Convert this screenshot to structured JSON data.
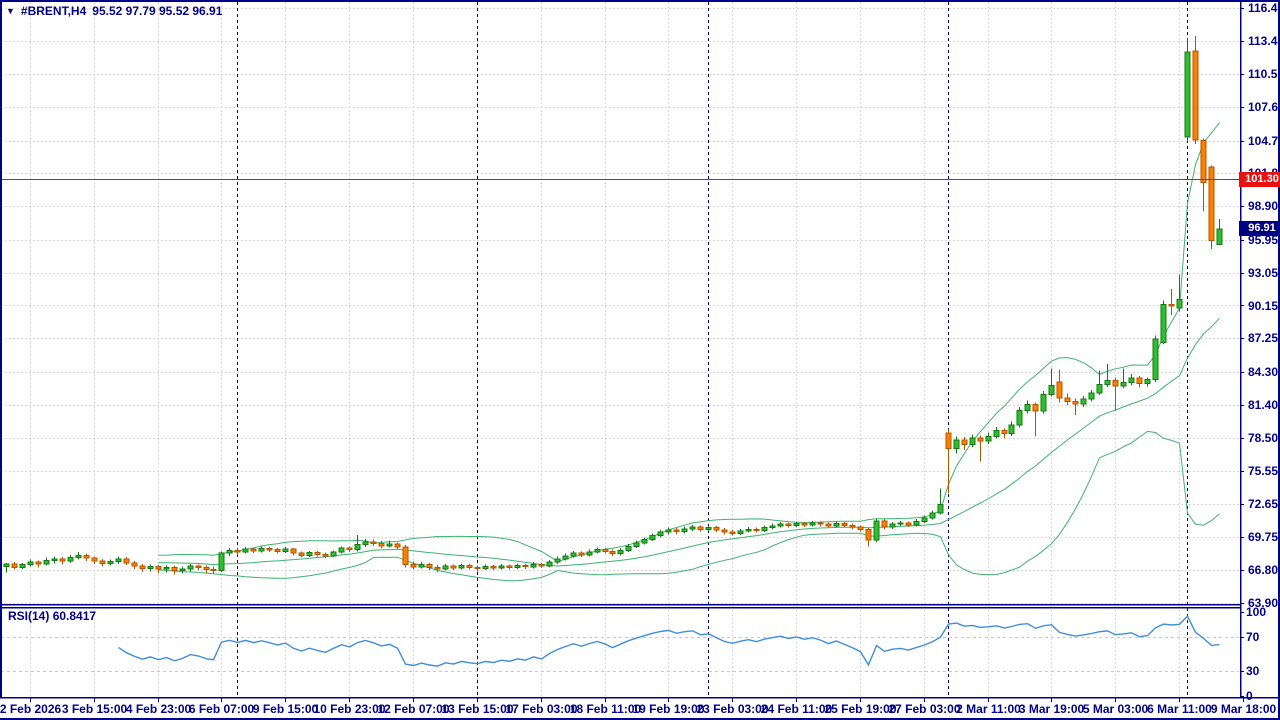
{
  "header": {
    "dropdown_icon": "▼",
    "symbol": "#BRENT,H4",
    "ohlc": "95.52 97.79 95.52 96.91"
  },
  "indicator_panel": {
    "label": "RSI(14)",
    "value": "60.8417"
  },
  "price_axis": {
    "hline_tag": "101.30",
    "last_price_tag": "96.91"
  },
  "colors": {
    "background": "#ffffff",
    "frame": "#00008B",
    "axis_text": "#00008B",
    "grid": "#d9d9d9",
    "separator": "#000080",
    "bull_fill": "#2fbe2f",
    "bull_edge": "#157815",
    "bear_fill": "#fc7f00",
    "bear_edge": "#b35400",
    "bollinger": "#3CB371",
    "rsi_line": "#3E8EDD",
    "hline": "#e81010",
    "hline_tag_bg": "#e81010",
    "last_tag_bg": "#000080"
  },
  "chart_data": {
    "type": "candlestick",
    "symbol": "#BRENT",
    "timeframe": "H4",
    "price_ticks": [
      116.4,
      113.45,
      110.55,
      107.65,
      104.7,
      101.8,
      98.9,
      95.95,
      93.05,
      90.15,
      87.25,
      84.3,
      81.4,
      78.5,
      75.55,
      72.65,
      69.75,
      66.8,
      63.9
    ],
    "rsi_ticks": [
      100,
      70,
      30,
      0
    ],
    "rsi_levels": [
      70,
      30
    ],
    "time_labels": [
      "2 Feb 2026",
      "3 Feb 15:00",
      "4 Feb 23:00",
      "6 Feb 07:00",
      "9 Feb 15:00",
      "10 Feb 23:00",
      "12 Feb 07:00",
      "13 Feb 15:00",
      "17 Feb 03:00",
      "18 Feb 11:00",
      "19 Feb 19:00",
      "23 Feb 03:00",
      "24 Feb 11:00",
      "25 Feb 19:00",
      "27 Feb 03:00",
      "2 Mar 11:00",
      "3 Mar 19:00",
      "5 Mar 03:00",
      "6 Mar 11:00",
      "9 Mar 18:00"
    ],
    "first_label_bar": 3,
    "label_step": 8,
    "period_separator_bars": [
      29,
      59,
      88,
      118,
      148
    ],
    "hline": 101.3,
    "last_close": 96.91,
    "indicators": [
      {
        "name": "Bollinger Bands",
        "period": 20,
        "deviation": 2
      },
      {
        "name": "RSI",
        "period": 14,
        "shown_value": 60.8417
      }
    ],
    "candles": [
      [
        67.1,
        67.45,
        66.6,
        67.32
      ],
      [
        67.32,
        67.5,
        66.85,
        67.05
      ],
      [
        67.05,
        67.42,
        66.9,
        67.28
      ],
      [
        67.28,
        67.72,
        67.1,
        67.5
      ],
      [
        67.5,
        67.65,
        67.05,
        67.36
      ],
      [
        67.36,
        67.9,
        67.2,
        67.65
      ],
      [
        67.65,
        68.0,
        67.4,
        67.78
      ],
      [
        67.78,
        67.95,
        67.3,
        67.6
      ],
      [
        67.6,
        68.15,
        67.45,
        67.92
      ],
      [
        67.92,
        68.4,
        67.75,
        68.1
      ],
      [
        68.1,
        68.25,
        67.6,
        67.85
      ],
      [
        67.85,
        68.0,
        67.35,
        67.62
      ],
      [
        67.62,
        67.8,
        67.15,
        67.4
      ],
      [
        67.4,
        67.75,
        67.2,
        67.55
      ],
      [
        67.55,
        68.0,
        67.35,
        67.8
      ],
      [
        67.8,
        67.95,
        67.25,
        67.45
      ],
      [
        67.45,
        67.6,
        66.9,
        67.18
      ],
      [
        67.18,
        67.35,
        66.65,
        66.95
      ],
      [
        66.95,
        67.3,
        66.7,
        67.1
      ],
      [
        67.1,
        67.25,
        66.55,
        66.88
      ],
      [
        66.88,
        67.2,
        66.6,
        67.02
      ],
      [
        67.02,
        67.15,
        66.4,
        66.75
      ],
      [
        66.75,
        67.1,
        66.5,
        66.9
      ],
      [
        66.9,
        67.35,
        66.7,
        67.15
      ],
      [
        67.15,
        67.3,
        66.8,
        67.05
      ],
      [
        67.05,
        67.2,
        66.55,
        66.85
      ],
      [
        66.85,
        67.1,
        66.5,
        66.78
      ],
      [
        66.78,
        68.45,
        66.65,
        68.3
      ],
      [
        68.3,
        68.75,
        68.05,
        68.55
      ],
      [
        68.55,
        68.7,
        68.15,
        68.4
      ],
      [
        68.4,
        68.85,
        68.25,
        68.65
      ],
      [
        68.65,
        68.8,
        68.3,
        68.5
      ],
      [
        68.5,
        68.9,
        68.35,
        68.72
      ],
      [
        68.72,
        68.85,
        68.4,
        68.6
      ],
      [
        68.6,
        68.75,
        68.25,
        68.45
      ],
      [
        68.45,
        68.85,
        68.3,
        68.65
      ],
      [
        68.65,
        68.75,
        68.1,
        68.3
      ],
      [
        68.3,
        68.45,
        67.9,
        68.1
      ],
      [
        68.1,
        68.5,
        67.95,
        68.35
      ],
      [
        68.35,
        68.5,
        68.0,
        68.2
      ],
      [
        68.2,
        68.35,
        67.85,
        68.05
      ],
      [
        68.05,
        68.55,
        67.95,
        68.4
      ],
      [
        68.4,
        68.9,
        68.25,
        68.75
      ],
      [
        68.75,
        68.9,
        68.4,
        68.6
      ],
      [
        68.6,
        69.9,
        68.45,
        69.05
      ],
      [
        69.05,
        69.55,
        68.85,
        69.3
      ],
      [
        69.3,
        69.5,
        68.95,
        69.15
      ],
      [
        69.15,
        69.35,
        68.75,
        68.95
      ],
      [
        68.95,
        69.4,
        68.8,
        69.1
      ],
      [
        69.1,
        69.25,
        68.6,
        68.85
      ],
      [
        68.85,
        69.0,
        67.05,
        67.3
      ],
      [
        67.3,
        67.55,
        66.85,
        67.1
      ],
      [
        67.1,
        67.5,
        66.95,
        67.3
      ],
      [
        67.3,
        67.45,
        66.8,
        67.05
      ],
      [
        67.05,
        67.25,
        66.65,
        66.9
      ],
      [
        66.9,
        67.35,
        66.75,
        67.15
      ],
      [
        67.15,
        67.3,
        66.8,
        67.0
      ],
      [
        67.0,
        67.4,
        66.85,
        67.2
      ],
      [
        67.2,
        67.35,
        66.85,
        67.05
      ],
      [
        67.05,
        67.2,
        66.7,
        66.95
      ],
      [
        66.95,
        67.3,
        66.8,
        67.1
      ],
      [
        67.1,
        67.25,
        66.8,
        67.0
      ],
      [
        67.0,
        67.35,
        66.85,
        67.15
      ],
      [
        67.15,
        67.3,
        66.85,
        67.05
      ],
      [
        67.05,
        67.4,
        66.9,
        67.2
      ],
      [
        67.2,
        67.35,
        66.9,
        67.1
      ],
      [
        67.1,
        67.5,
        66.95,
        67.3
      ],
      [
        67.3,
        67.45,
        67.0,
        67.15
      ],
      [
        67.15,
        67.7,
        67.05,
        67.5
      ],
      [
        67.5,
        68.0,
        67.35,
        67.8
      ],
      [
        67.8,
        68.25,
        67.65,
        68.05
      ],
      [
        68.05,
        68.5,
        67.9,
        68.3
      ],
      [
        68.3,
        68.45,
        67.95,
        68.15
      ],
      [
        68.15,
        68.6,
        68.0,
        68.4
      ],
      [
        68.4,
        68.8,
        68.25,
        68.6
      ],
      [
        68.6,
        68.75,
        68.25,
        68.45
      ],
      [
        68.45,
        68.6,
        68.05,
        68.25
      ],
      [
        68.25,
        68.75,
        68.1,
        68.55
      ],
      [
        68.55,
        69.1,
        68.4,
        68.9
      ],
      [
        68.9,
        69.4,
        68.75,
        69.2
      ],
      [
        69.2,
        69.7,
        69.05,
        69.5
      ],
      [
        69.5,
        70.05,
        69.35,
        69.85
      ],
      [
        69.85,
        70.35,
        69.7,
        70.15
      ],
      [
        70.15,
        70.55,
        69.95,
        70.35
      ],
      [
        70.35,
        70.5,
        69.95,
        70.2
      ],
      [
        70.2,
        70.65,
        70.05,
        70.45
      ],
      [
        70.45,
        70.8,
        70.25,
        70.6
      ],
      [
        70.6,
        70.75,
        70.2,
        70.4
      ],
      [
        70.4,
        70.75,
        70.25,
        70.55
      ],
      [
        70.55,
        70.7,
        70.15,
        70.35
      ],
      [
        70.35,
        70.5,
        69.95,
        70.15
      ],
      [
        70.15,
        70.35,
        69.85,
        70.05
      ],
      [
        70.05,
        70.45,
        69.9,
        70.25
      ],
      [
        70.25,
        70.6,
        70.1,
        70.4
      ],
      [
        70.4,
        70.55,
        70.1,
        70.3
      ],
      [
        70.3,
        70.75,
        70.15,
        70.55
      ],
      [
        70.55,
        70.9,
        70.4,
        70.7
      ],
      [
        70.7,
        71.05,
        70.55,
        70.85
      ],
      [
        70.85,
        71.0,
        70.55,
        70.75
      ],
      [
        70.75,
        71.1,
        70.6,
        70.9
      ],
      [
        70.9,
        71.05,
        70.6,
        70.8
      ],
      [
        70.8,
        71.15,
        70.65,
        70.95
      ],
      [
        70.95,
        71.1,
        70.65,
        70.85
      ],
      [
        70.85,
        71.0,
        70.5,
        70.7
      ],
      [
        70.7,
        71.1,
        70.55,
        70.9
      ],
      [
        70.9,
        71.05,
        70.55,
        70.75
      ],
      [
        70.75,
        70.9,
        70.4,
        70.6
      ],
      [
        70.6,
        70.75,
        70.2,
        70.4
      ],
      [
        70.4,
        70.55,
        68.9,
        69.45
      ],
      [
        69.45,
        71.35,
        69.3,
        71.15
      ],
      [
        71.15,
        71.3,
        70.4,
        70.6
      ],
      [
        70.6,
        71.05,
        70.45,
        70.85
      ],
      [
        70.85,
        71.15,
        70.65,
        70.95
      ],
      [
        70.95,
        71.1,
        70.6,
        70.8
      ],
      [
        70.8,
        71.3,
        70.65,
        71.1
      ],
      [
        71.1,
        71.6,
        70.95,
        71.4
      ],
      [
        71.4,
        72.05,
        71.25,
        71.85
      ],
      [
        71.85,
        74.0,
        71.7,
        72.6
      ],
      [
        78.9,
        79.2,
        73.6,
        77.55
      ],
      [
        77.55,
        78.6,
        77.1,
        78.3
      ],
      [
        78.3,
        78.55,
        77.4,
        77.9
      ],
      [
        77.9,
        78.75,
        77.65,
        78.45
      ],
      [
        78.45,
        78.7,
        76.4,
        78.2
      ],
      [
        78.2,
        78.95,
        77.95,
        78.6
      ],
      [
        78.6,
        79.45,
        78.4,
        79.1
      ],
      [
        79.1,
        79.3,
        78.4,
        78.85
      ],
      [
        78.85,
        79.9,
        78.65,
        79.6
      ],
      [
        79.6,
        81.2,
        79.4,
        80.9
      ],
      [
        80.9,
        81.75,
        80.6,
        81.4
      ],
      [
        81.4,
        81.6,
        78.6,
        80.85
      ],
      [
        80.85,
        82.6,
        80.6,
        82.3
      ],
      [
        82.3,
        84.6,
        82.1,
        83.1
      ],
      [
        83.4,
        84.5,
        81.6,
        82.0
      ],
      [
        82.0,
        82.4,
        81.35,
        81.7
      ],
      [
        81.7,
        81.95,
        80.5,
        81.45
      ],
      [
        81.45,
        82.15,
        81.2,
        81.9
      ],
      [
        81.9,
        82.7,
        81.7,
        82.45
      ],
      [
        82.45,
        84.4,
        82.25,
        83.2
      ],
      [
        83.2,
        85.0,
        82.95,
        83.55
      ],
      [
        83.55,
        83.8,
        80.9,
        83.05
      ],
      [
        83.05,
        84.6,
        82.85,
        83.35
      ],
      [
        83.35,
        84.1,
        83.1,
        83.75
      ],
      [
        83.75,
        83.95,
        82.9,
        83.25
      ],
      [
        83.25,
        83.8,
        83.0,
        83.6
      ],
      [
        83.6,
        87.5,
        83.4,
        87.2
      ],
      [
        86.9,
        90.6,
        86.75,
        90.25
      ],
      [
        90.25,
        91.6,
        89.3,
        90.1
      ],
      [
        89.95,
        92.9,
        89.6,
        90.7
      ],
      [
        105.0,
        113.7,
        104.6,
        112.5
      ],
      [
        112.6,
        113.95,
        104.4,
        104.75
      ],
      [
        104.7,
        104.9,
        98.45,
        101.0
      ],
      [
        102.35,
        102.5,
        95.15,
        95.9
      ],
      [
        95.52,
        97.79,
        95.52,
        96.91
      ]
    ]
  }
}
